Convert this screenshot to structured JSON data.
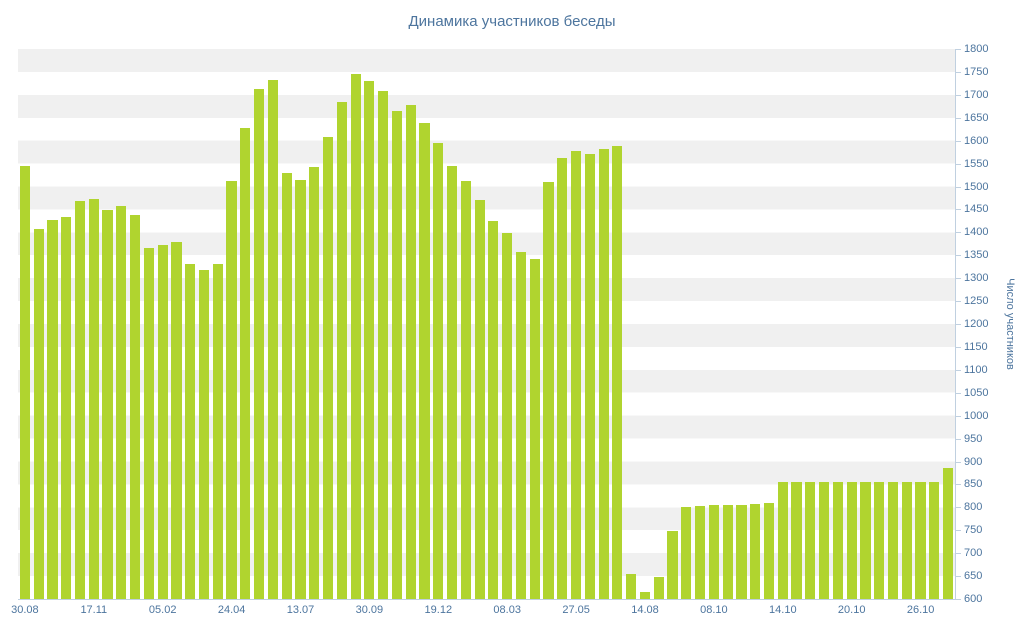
{
  "colors": {
    "bar": "#b0d42f",
    "axis_text": "#4d759e",
    "band": "#f0f0f0",
    "axis_line": "#c0d0e0",
    "background": "#ffffff"
  },
  "chart_data": {
    "type": "bar",
    "title": "Динамика участников беседы",
    "xlabel": "",
    "ylabel": "Число участников",
    "ylim": [
      600,
      1800
    ],
    "y_tick_step": 50,
    "y_tick_labels": [
      600,
      650,
      700,
      750,
      800,
      850,
      900,
      950,
      1000,
      1050,
      1100,
      1150,
      1200,
      1250,
      1300,
      1350,
      1400,
      1450,
      1500,
      1550,
      1600,
      1650,
      1700,
      1750,
      1800
    ],
    "x_tick_labels": [
      "30.08",
      "17.11",
      "05.02",
      "24.04",
      "13.07",
      "30.09",
      "19.12",
      "08.03",
      "27.05",
      "14.08",
      "08.10",
      "14.10",
      "20.10",
      "26.10"
    ],
    "x_tick_every": 5,
    "grid": "horizontal alternating bands",
    "legend": "none",
    "axis_side": "right",
    "values": [
      1545,
      1408,
      1428,
      1433,
      1468,
      1472,
      1448,
      1458,
      1438,
      1365,
      1372,
      1380,
      1332,
      1318,
      1330,
      1513,
      1628,
      1712,
      1732,
      1530,
      1515,
      1542,
      1608,
      1685,
      1745,
      1730,
      1708,
      1665,
      1678,
      1638,
      1595,
      1545,
      1512,
      1470,
      1424,
      1398,
      1358,
      1342,
      1510,
      1562,
      1578,
      1572,
      1582,
      1588,
      655,
      615,
      648,
      748,
      800,
      803,
      805,
      805,
      806,
      808,
      810,
      855,
      855,
      855,
      855,
      855,
      855,
      855,
      855,
      855,
      855,
      855,
      855,
      885
    ]
  }
}
